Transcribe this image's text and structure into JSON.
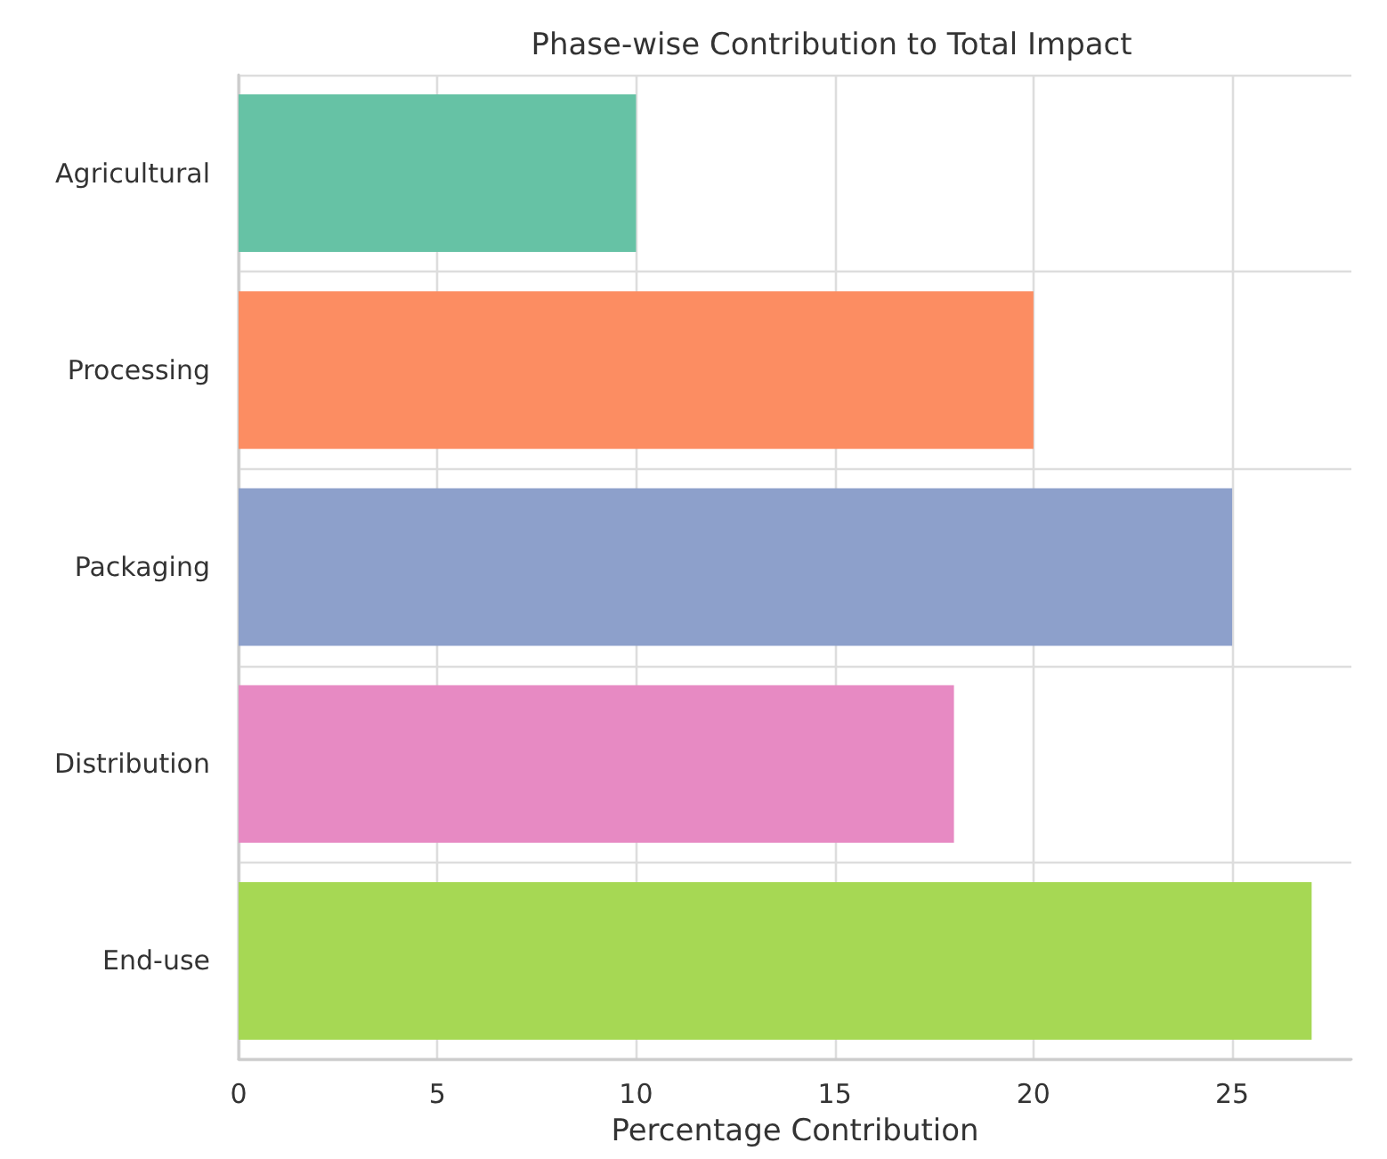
{
  "chart_data": {
    "type": "bar",
    "orientation": "horizontal",
    "title": "Phase-wise Contribution to Total Impact",
    "xlabel": "Percentage Contribution",
    "categories": [
      "Agricultural",
      "Processing",
      "Packaging",
      "Distribution",
      "End-use"
    ],
    "values": [
      10,
      20,
      25,
      18,
      27
    ],
    "colors": [
      "#66c2a5",
      "#fc8d62",
      "#8da0cb",
      "#e78ac3",
      "#a6d854"
    ],
    "xlim": [
      0,
      28
    ],
    "xticks": [
      0,
      5,
      10,
      15,
      20,
      25
    ],
    "grid": true
  }
}
